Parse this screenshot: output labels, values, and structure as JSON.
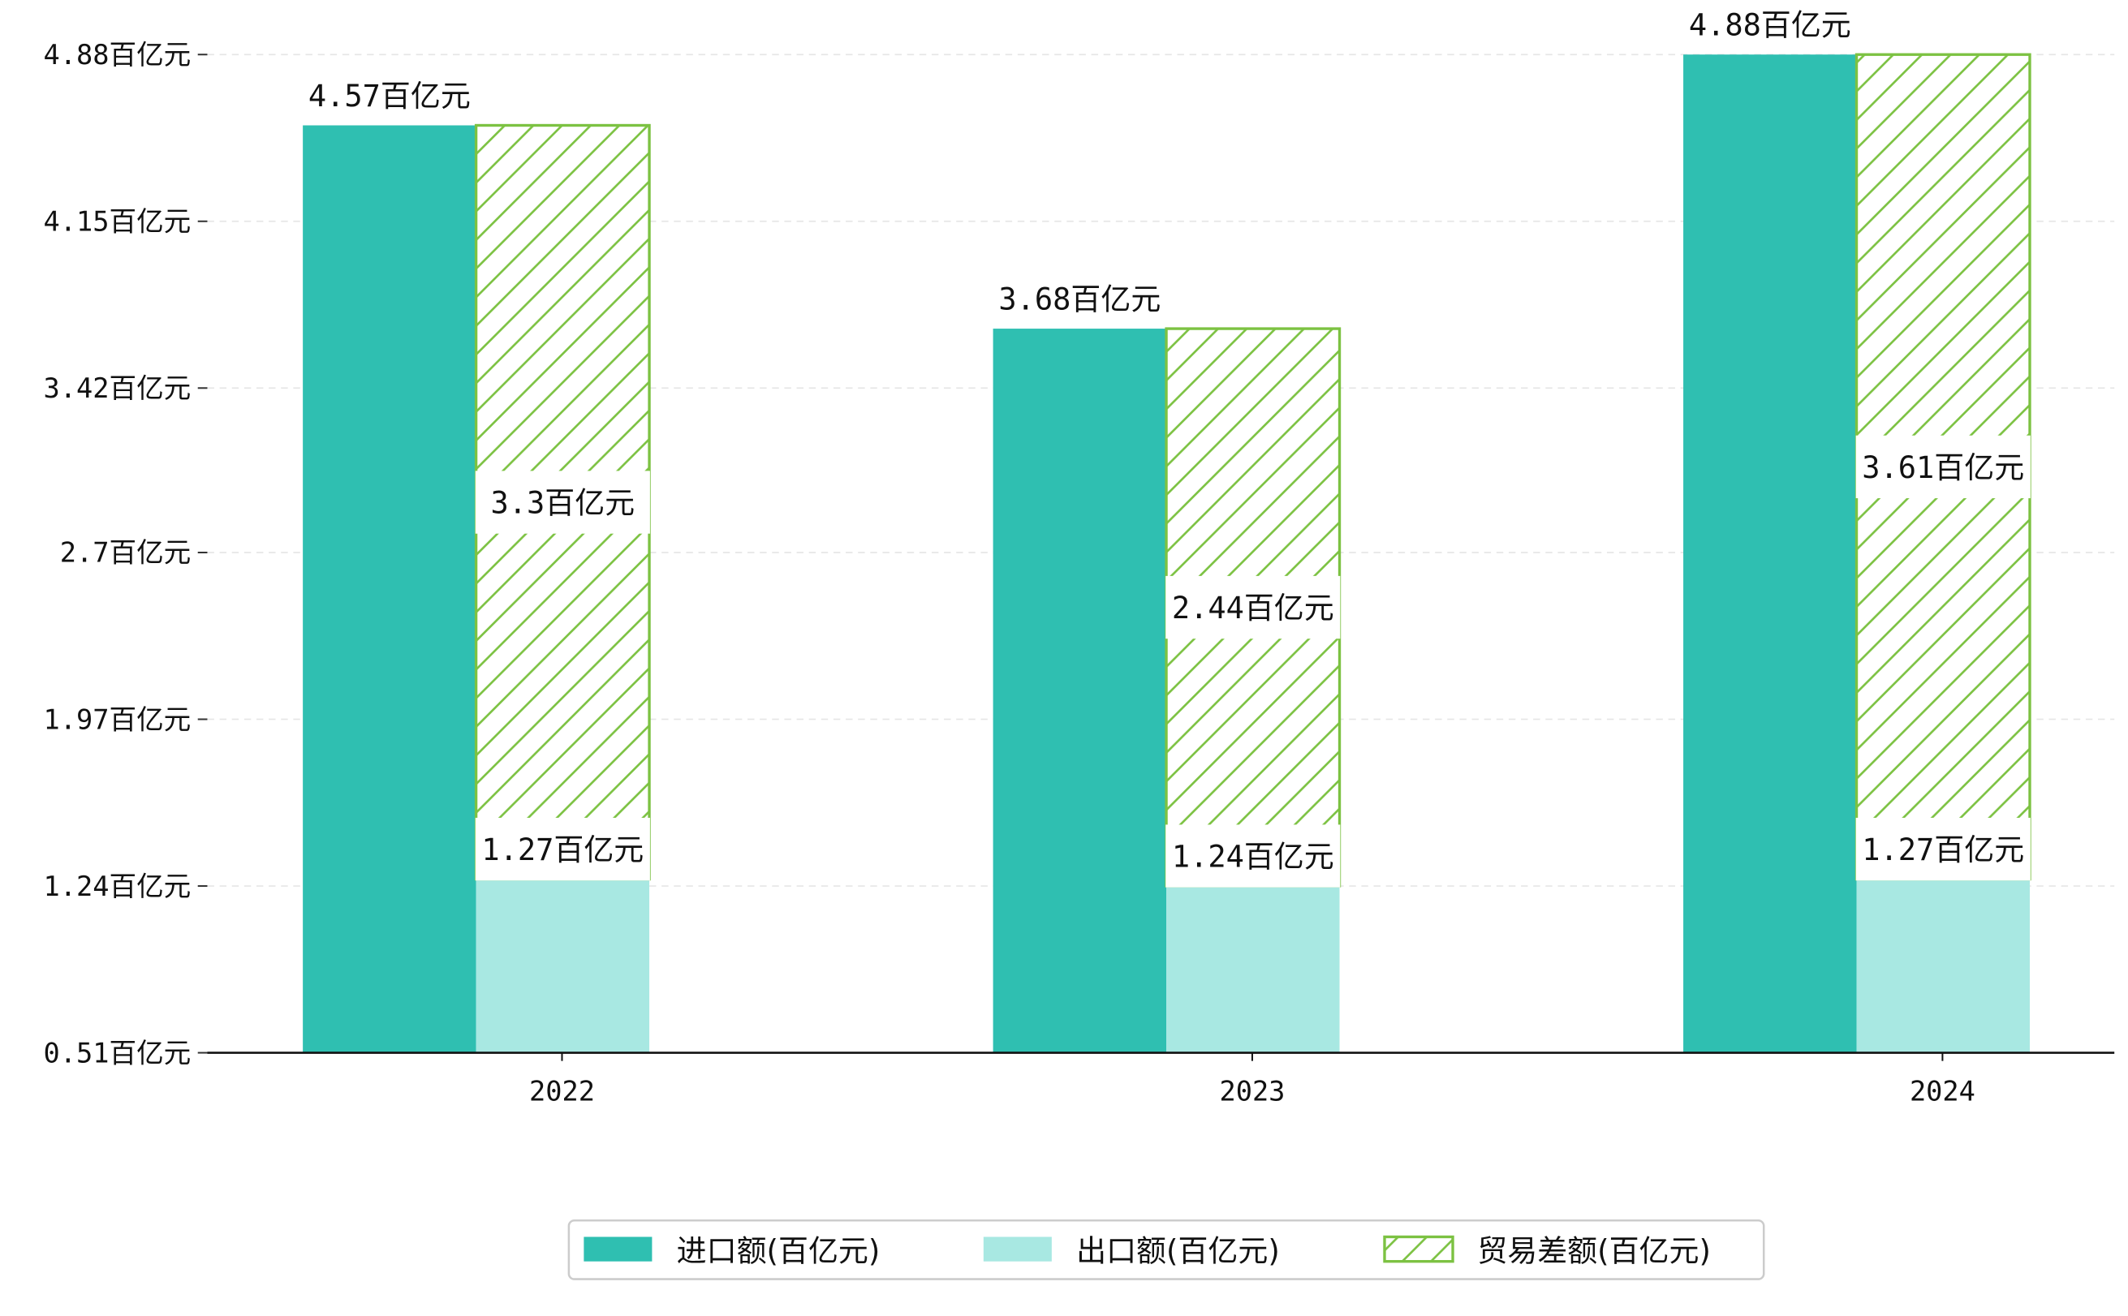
{
  "chart_data": {
    "type": "bar",
    "title": "",
    "xlabel": "",
    "ylabel": "",
    "categories": [
      "2022",
      "2023",
      "2024"
    ],
    "series": [
      {
        "name": "进口额(百亿元)",
        "values": [
          4.57,
          3.68,
          4.88
        ],
        "color": "#2fbfb1",
        "pattern": "solid",
        "stacked_on": null
      },
      {
        "name": "出口额(百亿元)",
        "values": [
          1.27,
          1.24,
          1.27
        ],
        "color": "#a8e8e2",
        "pattern": "solid",
        "stacked_on": null
      },
      {
        "name": "贸易差额(百亿元)",
        "values": [
          3.3,
          2.44,
          3.61
        ],
        "color": "#7cc242",
        "pattern": "hatch",
        "stacked_on": "出口额(百亿元)"
      }
    ],
    "value_labels": {
      "进口额(百亿元)": [
        "4.57百亿元",
        "3.68百亿元",
        "4.88百亿元"
      ],
      "出口额(百亿元)": [
        "1.27百亿元",
        "1.24百亿元",
        "1.27百亿元"
      ],
      "贸易差额(百亿元)": [
        "3.3百亿元",
        "2.44百亿元",
        "3.61百亿元"
      ]
    },
    "y_ticks": [
      0.51,
      1.24,
      1.97,
      2.7,
      3.42,
      4.15,
      4.88
    ],
    "y_tick_labels": [
      "0.51百亿元",
      "1.24百亿元",
      "1.97百亿元",
      "2.7百亿元",
      "3.42百亿元",
      "4.15百亿元",
      "4.88百亿元"
    ],
    "ylim": [
      0.51,
      4.88
    ],
    "grid": "horizontal-dashed",
    "legend_position": "bottom-center"
  }
}
